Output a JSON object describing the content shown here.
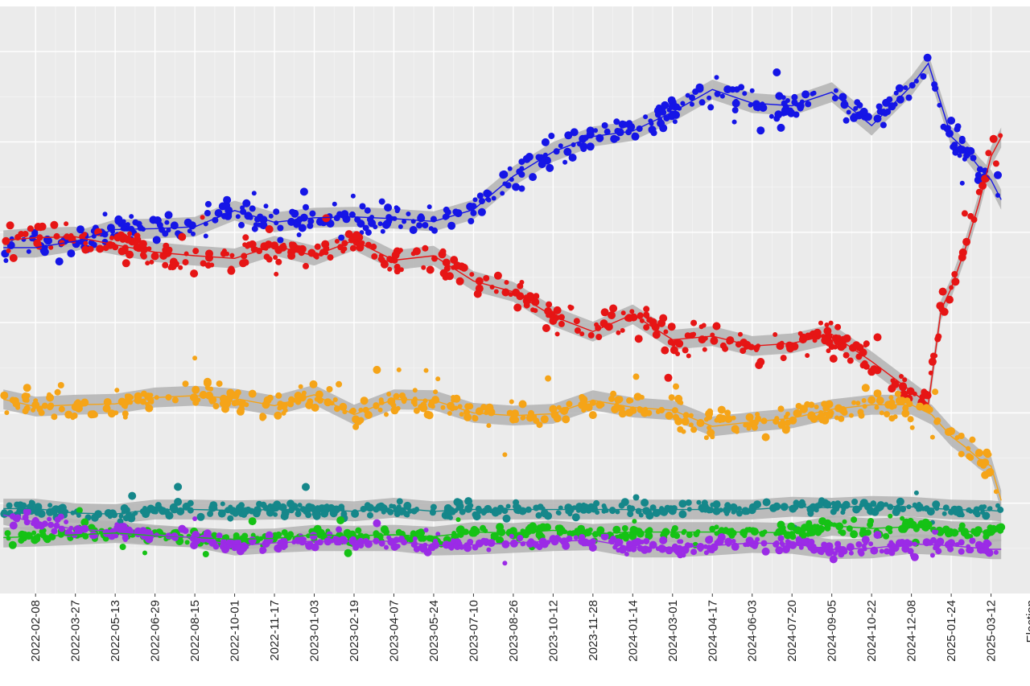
{
  "chart_data": {
    "type": "scatter",
    "title": "",
    "xlabel": "",
    "ylabel": "",
    "x_tick_labels": [
      "2022-02-08",
      "2022-03-27",
      "2022-05-13",
      "2022-06-29",
      "2022-08-15",
      "2022-10-01",
      "2022-11-17",
      "2023-01-03",
      "2023-02-19",
      "2023-04-07",
      "2023-05-24",
      "2023-07-10",
      "2023-08-26",
      "2023-10-12",
      "2023-11-28",
      "2024-01-14",
      "2024-03-01",
      "2024-04-17",
      "2024-06-03",
      "2024-07-20",
      "2024-09-05",
      "2024-10-22",
      "2024-12-08",
      "2025-01-24",
      "2025-03-12",
      "Election"
    ],
    "xlim": [
      "2021-12-28",
      "2025-04-27"
    ],
    "y_tick_labels_visible": false,
    "grid": true,
    "legend": "none",
    "smoothing_band": true,
    "band_color": "#b3b3b3",
    "background_color": "#ebebeb",
    "series": [
      {
        "color": "#1515e6",
        "trend": [
          [
            "2022-01-01",
            38.3
          ],
          [
            "2022-02-08",
            38.3
          ],
          [
            "2022-03-27",
            39.0
          ],
          [
            "2022-05-13",
            40.3
          ],
          [
            "2022-06-29",
            40.4
          ],
          [
            "2022-08-15",
            40.6
          ],
          [
            "2022-10-01",
            42.4
          ],
          [
            "2022-11-17",
            41.1
          ],
          [
            "2023-01-03",
            41.6
          ],
          [
            "2023-02-19",
            41.7
          ],
          [
            "2023-04-07",
            41.5
          ],
          [
            "2023-05-24",
            41.2
          ],
          [
            "2023-07-10",
            42.5
          ],
          [
            "2023-08-26",
            46.2
          ],
          [
            "2023-10-12",
            48.9
          ],
          [
            "2023-11-28",
            50.6
          ],
          [
            "2024-01-14",
            51.2
          ],
          [
            "2024-03-01",
            53.3
          ],
          [
            "2024-04-17",
            55.8
          ],
          [
            "2024-06-03",
            54.3
          ],
          [
            "2024-07-20",
            54.0
          ],
          [
            "2024-09-05",
            55.5
          ],
          [
            "2024-10-22",
            51.8
          ],
          [
            "2024-12-08",
            56.2
          ],
          [
            "2024-12-28",
            58.7
          ],
          [
            "2025-01-24",
            50.6
          ],
          [
            "2025-02-10",
            49.1
          ],
          [
            "2025-02-26",
            47.2
          ],
          [
            "2025-03-12",
            45.8
          ],
          [
            "2025-03-24",
            43.6
          ]
        ]
      },
      {
        "color": "#e61515",
        "trend": [
          [
            "2022-01-01",
            39.1
          ],
          [
            "2022-02-08",
            39.4
          ],
          [
            "2022-03-27",
            39.5
          ],
          [
            "2022-05-13",
            38.6
          ],
          [
            "2022-06-29",
            37.8
          ],
          [
            "2022-08-15",
            37.4
          ],
          [
            "2022-10-01",
            37.1
          ],
          [
            "2022-11-17",
            38.5
          ],
          [
            "2023-01-03",
            37.4
          ],
          [
            "2023-02-19",
            39.1
          ],
          [
            "2023-04-07",
            36.9
          ],
          [
            "2023-05-24",
            37.4
          ],
          [
            "2023-07-10",
            34.6
          ],
          [
            "2023-08-26",
            33.4
          ],
          [
            "2023-10-12",
            30.7
          ],
          [
            "2023-11-28",
            29.0
          ],
          [
            "2024-01-14",
            30.9
          ],
          [
            "2024-03-01",
            28.1
          ],
          [
            "2024-04-17",
            28.5
          ],
          [
            "2024-06-03",
            27.4
          ],
          [
            "2024-07-20",
            27.7
          ],
          [
            "2024-09-05",
            28.7
          ],
          [
            "2024-10-22",
            25.7
          ],
          [
            "2024-12-08",
            22.4
          ],
          [
            "2024-12-28",
            21.0
          ],
          [
            "2025-01-12",
            31.4
          ],
          [
            "2025-01-24",
            33.8
          ],
          [
            "2025-02-10",
            38.3
          ],
          [
            "2025-02-26",
            43.3
          ],
          [
            "2025-03-12",
            48.4
          ],
          [
            "2025-03-24",
            50.5
          ]
        ]
      },
      {
        "color": "#f5a418",
        "trend": [
          [
            "2022-01-01",
            21.5
          ],
          [
            "2022-02-08",
            20.7
          ],
          [
            "2022-03-27",
            20.9
          ],
          [
            "2022-05-13",
            21.0
          ],
          [
            "2022-06-29",
            21.7
          ],
          [
            "2022-08-15",
            21.9
          ],
          [
            "2022-10-01",
            21.6
          ],
          [
            "2022-11-17",
            20.8
          ],
          [
            "2023-01-03",
            22.0
          ],
          [
            "2023-02-19",
            19.8
          ],
          [
            "2023-04-07",
            21.5
          ],
          [
            "2023-05-24",
            21.4
          ],
          [
            "2023-07-10",
            20.0
          ],
          [
            "2023-08-26",
            19.7
          ],
          [
            "2023-10-12",
            19.9
          ],
          [
            "2023-11-28",
            21.4
          ],
          [
            "2024-01-14",
            20.6
          ],
          [
            "2024-03-01",
            20.3
          ],
          [
            "2024-04-17",
            18.5
          ],
          [
            "2024-06-03",
            19.0
          ],
          [
            "2024-07-20",
            19.4
          ],
          [
            "2024-09-05",
            20.4
          ],
          [
            "2024-10-22",
            20.9
          ],
          [
            "2024-12-08",
            20.9
          ],
          [
            "2025-01-01",
            19.8
          ],
          [
            "2025-01-24",
            17.4
          ],
          [
            "2025-02-10",
            16.2
          ],
          [
            "2025-02-26",
            14.9
          ],
          [
            "2025-03-12",
            14.1
          ],
          [
            "2025-03-24",
            10.3
          ]
        ]
      },
      {
        "color": "#15878a",
        "trend": [
          [
            "2022-01-01",
            9.4
          ],
          [
            "2022-02-08",
            9.4
          ],
          [
            "2022-03-27",
            8.9
          ],
          [
            "2022-05-13",
            8.8
          ],
          [
            "2022-06-29",
            9.3
          ],
          [
            "2022-08-15",
            9.3
          ],
          [
            "2022-10-01",
            9.2
          ],
          [
            "2022-11-17",
            9.3
          ],
          [
            "2023-01-03",
            9.3
          ],
          [
            "2023-02-19",
            9.1
          ],
          [
            "2023-04-07",
            9.5
          ],
          [
            "2023-05-24",
            9.1
          ],
          [
            "2023-07-10",
            9.3
          ],
          [
            "2023-08-26",
            9.3
          ],
          [
            "2023-10-12",
            9.3
          ],
          [
            "2023-11-28",
            9.3
          ],
          [
            "2024-01-14",
            9.3
          ],
          [
            "2024-03-01",
            9.3
          ],
          [
            "2024-04-17",
            9.3
          ],
          [
            "2024-06-03",
            9.3
          ],
          [
            "2024-07-20",
            9.6
          ],
          [
            "2024-09-05",
            9.5
          ],
          [
            "2024-10-22",
            9.7
          ],
          [
            "2024-12-08",
            9.6
          ],
          [
            "2025-01-24",
            9.3
          ],
          [
            "2025-03-12",
            9.2
          ],
          [
            "2025-03-24",
            9.1
          ]
        ]
      },
      {
        "color": "#15c215",
        "trend": [
          [
            "2022-01-01",
            6.2
          ],
          [
            "2022-02-08",
            6.3
          ],
          [
            "2022-03-27",
            6.5
          ],
          [
            "2022-05-13",
            6.7
          ],
          [
            "2022-06-29",
            6.4
          ],
          [
            "2022-08-15",
            6.2
          ],
          [
            "2022-10-01",
            6.0
          ],
          [
            "2022-11-17",
            6.1
          ],
          [
            "2023-01-03",
            6.5
          ],
          [
            "2023-02-19",
            6.4
          ],
          [
            "2023-04-07",
            6.5
          ],
          [
            "2023-05-24",
            6.3
          ],
          [
            "2023-07-10",
            6.8
          ],
          [
            "2023-08-26",
            6.7
          ],
          [
            "2023-10-12",
            7.0
          ],
          [
            "2023-11-28",
            6.6
          ],
          [
            "2024-01-14",
            6.8
          ],
          [
            "2024-03-01",
            6.8
          ],
          [
            "2024-04-17",
            6.8
          ],
          [
            "2024-06-03",
            6.8
          ],
          [
            "2024-07-20",
            6.7
          ],
          [
            "2024-09-05",
            7.5
          ],
          [
            "2024-10-22",
            7.2
          ],
          [
            "2024-12-08",
            7.4
          ],
          [
            "2025-01-24",
            6.9
          ],
          [
            "2025-03-12",
            6.8
          ],
          [
            "2025-03-24",
            6.9
          ]
        ]
      },
      {
        "color": "#9b2be6",
        "trend": [
          [
            "2022-01-01",
            8.7
          ],
          [
            "2022-02-08",
            7.9
          ],
          [
            "2022-03-27",
            7.1
          ],
          [
            "2022-05-13",
            6.9
          ],
          [
            "2022-06-29",
            6.5
          ],
          [
            "2022-08-15",
            6.2
          ],
          [
            "2022-10-01",
            5.3
          ],
          [
            "2022-11-17",
            5.6
          ],
          [
            "2023-01-03",
            5.8
          ],
          [
            "2023-02-19",
            5.8
          ],
          [
            "2023-04-07",
            5.8
          ],
          [
            "2023-05-24",
            5.3
          ],
          [
            "2023-07-10",
            5.4
          ],
          [
            "2023-08-26",
            5.6
          ],
          [
            "2023-10-12",
            5.8
          ],
          [
            "2023-11-28",
            5.9
          ],
          [
            "2024-01-14",
            5.1
          ],
          [
            "2024-03-01",
            5.1
          ],
          [
            "2024-04-17",
            5.3
          ],
          [
            "2024-06-03",
            5.6
          ],
          [
            "2024-07-20",
            5.5
          ],
          [
            "2024-09-05",
            4.9
          ],
          [
            "2024-10-22",
            5.0
          ],
          [
            "2024-12-08",
            5.5
          ],
          [
            "2025-01-24",
            5.3
          ],
          [
            "2025-03-12",
            4.9
          ],
          [
            "2025-03-24",
            4.9
          ]
        ]
      }
    ]
  }
}
